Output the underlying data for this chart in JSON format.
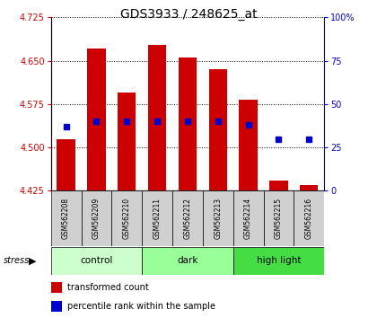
{
  "title": "GDS3933 / 248625_at",
  "samples": [
    "GSM562208",
    "GSM562209",
    "GSM562210",
    "GSM562211",
    "GSM562212",
    "GSM562213",
    "GSM562214",
    "GSM562215",
    "GSM562216"
  ],
  "transformed_counts": [
    4.515,
    4.672,
    4.595,
    4.678,
    4.655,
    4.635,
    4.582,
    4.443,
    4.435
  ],
  "percentile_ranks": [
    37,
    40,
    40,
    40,
    40,
    40,
    38,
    30,
    30
  ],
  "ylim_left": [
    4.425,
    4.725
  ],
  "ylim_right": [
    0,
    100
  ],
  "yticks_left": [
    4.425,
    4.5,
    4.575,
    4.65,
    4.725
  ],
  "yticks_right": [
    0,
    25,
    50,
    75,
    100
  ],
  "groups": [
    {
      "label": "control",
      "indices": [
        0,
        1,
        2
      ],
      "color": "#ccffcc"
    },
    {
      "label": "dark",
      "indices": [
        3,
        4,
        5
      ],
      "color": "#99ff99"
    },
    {
      "label": "high light",
      "indices": [
        6,
        7,
        8
      ],
      "color": "#44dd44"
    }
  ],
  "bar_color": "#cc0000",
  "dot_color": "#0000cc",
  "plot_bg": "#ffffff",
  "left_label_color": "#cc0000",
  "right_label_color": "#0000cc",
  "sample_box_color": "#d0d0d0"
}
